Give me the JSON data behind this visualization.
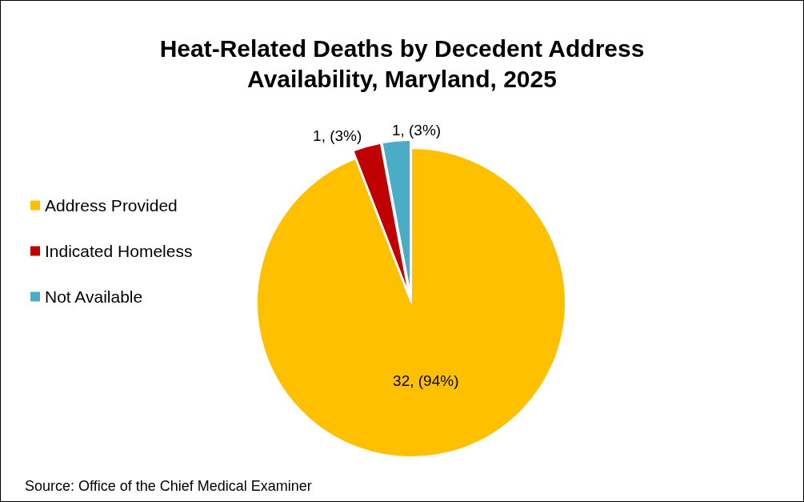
{
  "chart_data": {
    "type": "pie",
    "title": "Heat-Related Deaths by Decedent Address\nAvailability, Maryland, 2025",
    "categories": [
      "Address Provided",
      "Indicated Homeless",
      "Not Available"
    ],
    "values": [
      32,
      1,
      1
    ],
    "colors": [
      "#ffc000",
      "#c00000",
      "#4bacc6"
    ],
    "value_labels": [
      "32, (94%)",
      "1, (3%)",
      "1, (3%)"
    ],
    "legend": "left",
    "annotations": [
      "Source: Office of the Chief Medical Examiner"
    ]
  }
}
